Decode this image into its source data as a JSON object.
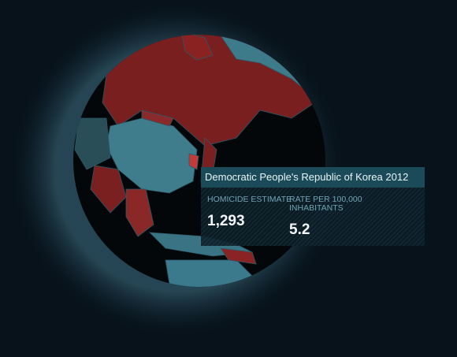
{
  "tooltip": {
    "title": "Democratic People's Republic of Korea 2012",
    "metrics": [
      {
        "label": "HOMICIDE ESTIMATE",
        "value": "1,293"
      },
      {
        "label": "RATE PER 100,000 INHABITANTS",
        "value": "5.2"
      }
    ]
  }
}
